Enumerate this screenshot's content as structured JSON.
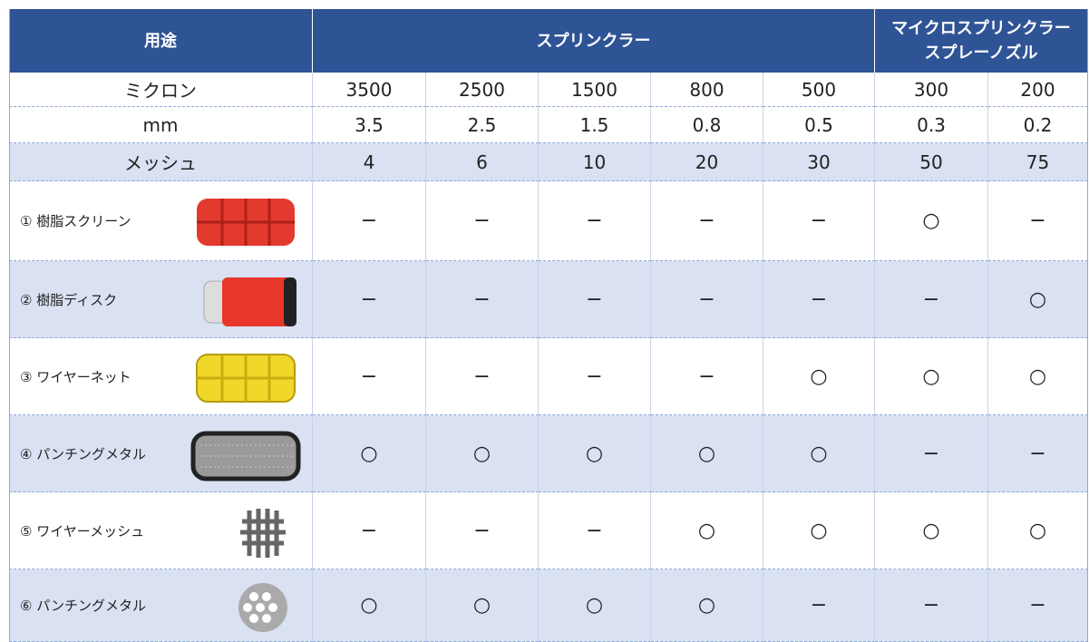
{
  "header": {
    "usage": "用途",
    "sprinkler": "スプリンクラー",
    "micro": [
      "マイクロスプリンクラー",
      "スプレーノズル"
    ]
  },
  "spec_rows": [
    {
      "label": "ミクロン",
      "values": [
        "3500",
        "2500",
        "1500",
        "800",
        "500",
        "300",
        "200"
      ]
    },
    {
      "label": "mm",
      "values": [
        "3.5",
        "2.5",
        "1.5",
        "0.8",
        "0.5",
        "0.3",
        "0.2"
      ]
    },
    {
      "label": "メッシュ",
      "values": [
        "4",
        "6",
        "10",
        "20",
        "30",
        "50",
        "75"
      ]
    }
  ],
  "products": [
    {
      "label": "① 樹脂スクリーン",
      "values": [
        "−",
        "−",
        "−",
        "−",
        "−",
        "○",
        "−"
      ]
    },
    {
      "label": "② 樹脂ディスク",
      "values": [
        "−",
        "−",
        "−",
        "−",
        "−",
        "−",
        "○"
      ]
    },
    {
      "label": "③ ワイヤーネット",
      "values": [
        "−",
        "−",
        "−",
        "−",
        "○",
        "○",
        "○"
      ]
    },
    {
      "label": "④ パンチングメタル",
      "values": [
        "○",
        "○",
        "○",
        "○",
        "○",
        "−",
        "−"
      ]
    },
    {
      "label": "⑤ ワイヤーメッシュ",
      "values": [
        "−",
        "−",
        "−",
        "○",
        "○",
        "○",
        "○"
      ]
    },
    {
      "label": "⑥ パンチングメタル",
      "values": [
        "○",
        "○",
        "○",
        "○",
        "−",
        "−",
        "−"
      ]
    }
  ]
}
